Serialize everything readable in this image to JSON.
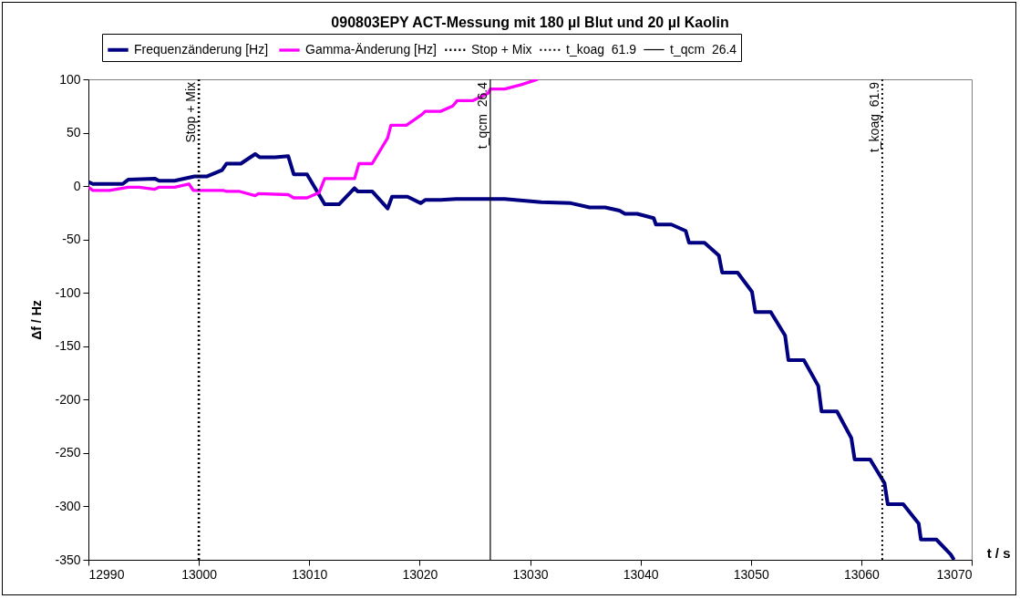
{
  "chart_data": {
    "type": "line",
    "title": "090803EPY ACT-Messung mit 180 µl Blut und 20 µl Kaolin",
    "xlabel": "t / s",
    "ylabel": "Δf / Hz",
    "xlim": [
      12990,
      13070
    ],
    "xticks": [
      12990,
      13000,
      13010,
      13020,
      13030,
      13040,
      13050,
      13060,
      13070
    ],
    "ylim": [
      -350,
      100
    ],
    "yticks": [
      -350,
      -300,
      -250,
      -200,
      -150,
      -100,
      -50,
      0,
      50,
      100
    ],
    "legend": "top",
    "grid": false,
    "marker": "none",
    "line_style": "solid",
    "series": [
      {
        "name": "Frequenzänderung [Hz]",
        "color": "#000080",
        "x": [
          12990,
          12990.4,
          12993.1,
          12993.6,
          12996.0,
          12996.4,
          12997.8,
          12999.6,
          13000.7,
          13002.1,
          13002.5,
          13003.8,
          13005.1,
          13005.5,
          13006.9,
          13008.1,
          13008.6,
          13009.8,
          13011.4,
          13012.7,
          13014.1,
          13014.4,
          13015.7,
          13017.1,
          13017.5,
          13018.9,
          13020.1,
          13020.5,
          13021.9,
          13023.3,
          13027.7,
          13031.0,
          13033.7,
          13035.4,
          13036.8,
          13038.1,
          13038.6,
          13039.7,
          13041.2,
          13041.4,
          13042.8,
          13044.1,
          13044.4,
          13045.8,
          13047.1,
          13047.4,
          13048.8,
          13050.1,
          13050.4,
          13051.8,
          13053.1,
          13053.4,
          13054.8,
          13056.1,
          13056.4,
          13057.8,
          13059.1,
          13059.4,
          13060.8,
          13062.1,
          13062.4,
          13063.8,
          13065.2,
          13065.4,
          13066.8,
          13068.1,
          13068.4
        ],
        "values": [
          4,
          2,
          2,
          6,
          7,
          5,
          5,
          9,
          9,
          15,
          21,
          21,
          30,
          27,
          27,
          28,
          11,
          11,
          -17,
          -17,
          -2,
          -5,
          -5,
          -21,
          -10,
          -10,
          -16,
          -13,
          -13,
          -12,
          -12,
          -15,
          -16,
          -20,
          -20,
          -23,
          -26,
          -26,
          -30,
          -36,
          -36,
          -42,
          -53,
          -53,
          -65,
          -81,
          -81,
          -99,
          -118,
          -118,
          -140,
          -163,
          -163,
          -187,
          -211,
          -211,
          -236,
          -256,
          -256,
          -278,
          -298,
          -298,
          -316,
          -331,
          -331,
          -345,
          -350
        ]
      },
      {
        "name": "Gamma-Änderung [Hz]",
        "color": "#ff00ff",
        "x": [
          12990,
          12990.4,
          12991.9,
          12993.6,
          12994.6,
          12996.0,
          12996.4,
          12997.8,
          12999.1,
          12999.5,
          13002.2,
          13002.5,
          13003.7,
          13005.1,
          13005.4,
          13008.1,
          13008.6,
          13009.8,
          13010.9,
          13011.4,
          13014.1,
          13014.5,
          13015.7,
          13017.1,
          13017.4,
          13018.8,
          13020.2,
          13020.5,
          13021.9,
          13023.0,
          13023.4,
          13024.8,
          13026.2,
          13026.4,
          13027.7,
          13029.2,
          13030.7
        ],
        "values": [
          -1,
          -4,
          -4,
          -1,
          -1,
          -3,
          -1,
          -1,
          2,
          -4,
          -4,
          -5,
          -5,
          -9,
          -7,
          -8,
          -11,
          -11,
          -6,
          7,
          7,
          21,
          21,
          45,
          57,
          57,
          67,
          70,
          70,
          75,
          80,
          80,
          87,
          91,
          91,
          95,
          100
        ]
      }
    ],
    "ref_lines": [
      {
        "axis": "x",
        "value": 13000,
        "label": "Stop + Mix",
        "color": "#000000",
        "line_style": "dotted"
      },
      {
        "axis": "x",
        "value": 13061.9,
        "label": "t_koag  61.9",
        "color": "#000000",
        "line_style": "dotted"
      },
      {
        "axis": "x",
        "value": 13026.4,
        "label": "t_qcm  26.4",
        "color": "#000000",
        "line_style": "solid"
      }
    ]
  }
}
